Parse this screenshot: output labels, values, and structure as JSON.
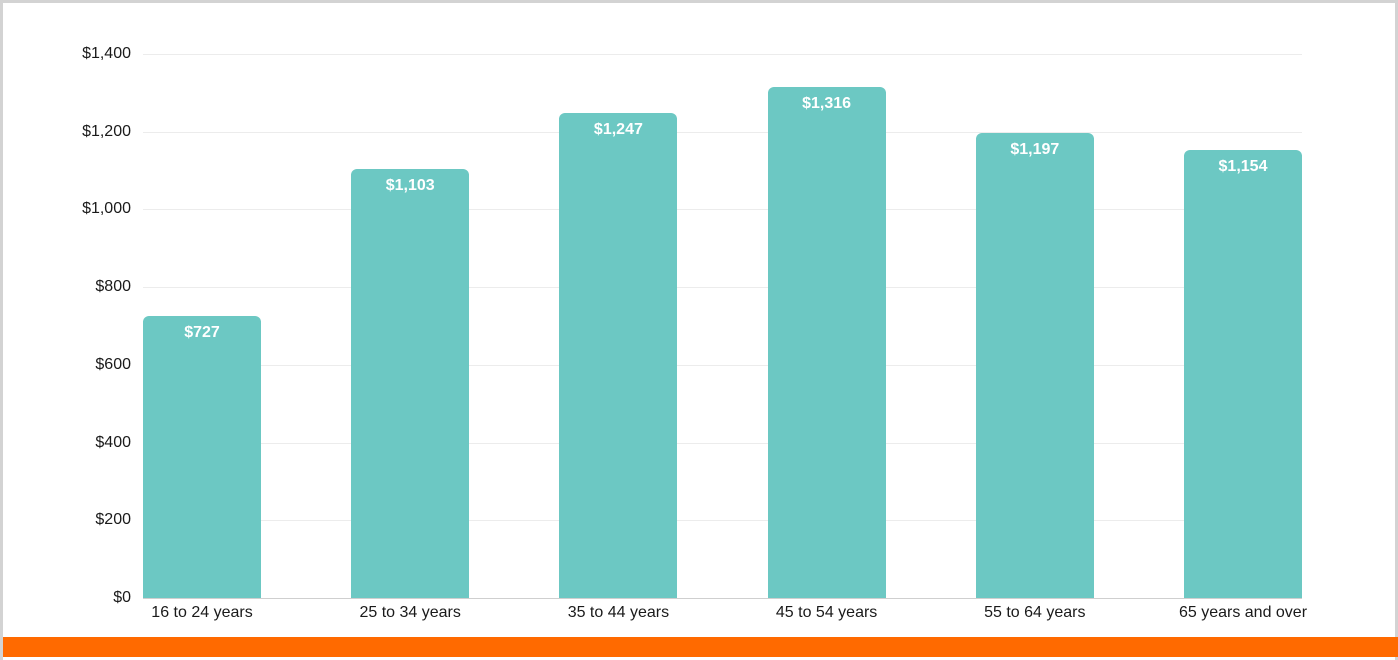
{
  "chart_data": {
    "type": "bar",
    "title": "",
    "xlabel": "",
    "ylabel": "",
    "categories": [
      "16 to 24 years",
      "25 to 34 years",
      "35 to 44 years",
      "45 to 54 years",
      "55 to 64 years",
      "65 years and over"
    ],
    "values": [
      727,
      1103,
      1247,
      1316,
      1197,
      1154
    ],
    "value_labels": [
      "$727",
      "$1,103",
      "$1,247",
      "$1,316",
      "$1,197",
      "$1,154"
    ],
    "ylim": [
      0,
      1400
    ],
    "yticks": [
      0,
      200,
      400,
      600,
      800,
      1000,
      1200,
      1400
    ],
    "ytick_labels": [
      "$0",
      "$200",
      "$400",
      "$600",
      "$800",
      "$1,000",
      "$1,200",
      "$1,400"
    ],
    "grid": true,
    "legend": null,
    "bar_color": "#6cc8c3"
  },
  "colors": {
    "bar": "#6cc8c3",
    "footer_stripe": "#ff6a00",
    "border": "#d3d3d3"
  }
}
